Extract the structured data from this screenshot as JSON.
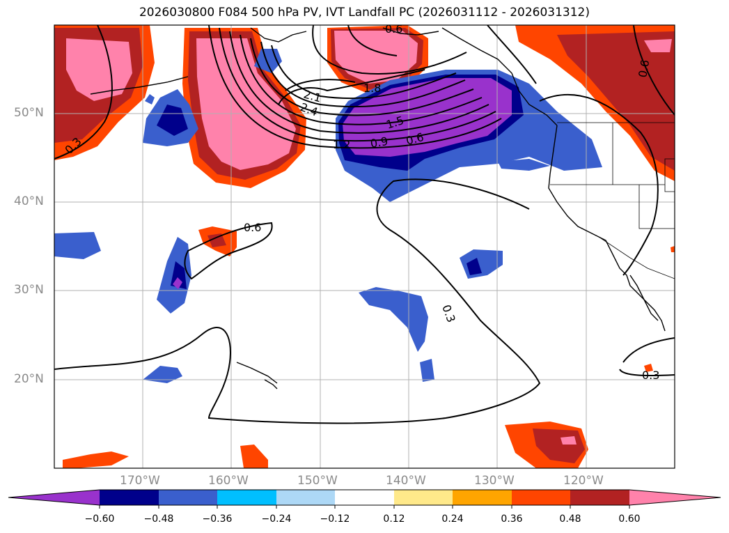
{
  "title": "2026030800 F084 500 hPa PV, IVT Landfall PC (2026031112 - 2026031312)",
  "map": {
    "projection": "equirectangular",
    "lon_range": [
      -180,
      -110
    ],
    "lat_range": [
      10,
      60
    ],
    "lat_labels": [
      "50°N",
      "40°N",
      "30°N",
      "20°N"
    ],
    "lon_labels": [
      "170°W",
      "160°W",
      "150°W",
      "140°W",
      "130°W",
      "120°W"
    ],
    "contour_labels": [
      "0.6",
      "2.1",
      "1.8",
      "2.4",
      "1.5",
      "1.2",
      "0.9",
      "0.6",
      "0.6",
      "0.3",
      "0.3",
      "0.3",
      "0.6"
    ],
    "grid": true
  },
  "colorbar": {
    "ticks": [
      "−0.60",
      "−0.48",
      "−0.36",
      "−0.24",
      "−0.12",
      "0.12",
      "0.24",
      "0.36",
      "0.48",
      "0.60"
    ],
    "colors": [
      "#9932cc",
      "#00008b",
      "#3a5fcd",
      "#00bfff",
      "#add8f6",
      "#ffffff",
      "#ffe98a",
      "#ffa500",
      "#ff4500",
      "#b22222",
      "#ff82ab"
    ],
    "extend": "both"
  }
}
